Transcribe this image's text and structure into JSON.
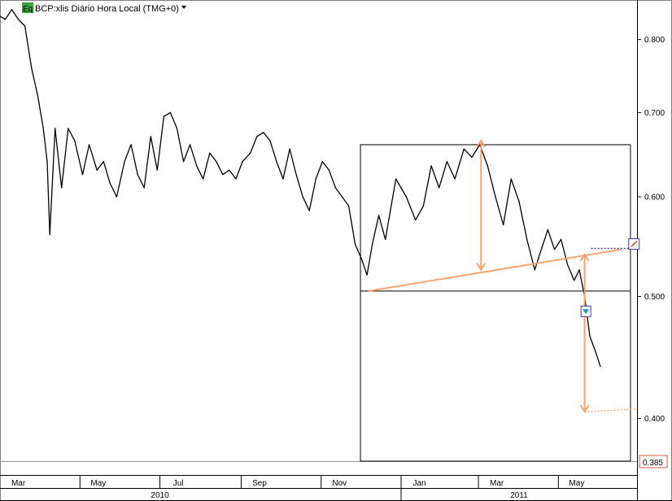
{
  "chart_data": {
    "type": "line",
    "title": "BCP:xlis Diário Hora Local (TMG+0)",
    "symbol_badge": "Eq",
    "y_scale": "log",
    "ylim": [
      0.37,
      0.86
    ],
    "y_ticks": [
      {
        "value": 0.8,
        "label": "0.800"
      },
      {
        "value": 0.7,
        "label": "0.700"
      },
      {
        "value": 0.6,
        "label": "0.600"
      },
      {
        "value": 0.5,
        "label": "0.500"
      },
      {
        "value": 0.4,
        "label": "0.400"
      }
    ],
    "x_range": [
      "2010-03-01",
      "2011-06-30"
    ],
    "x_month_labels": [
      {
        "date": "2010-03-15",
        "label": "Mar"
      },
      {
        "date": "2010-05-15",
        "label": "May"
      },
      {
        "date": "2010-07-15",
        "label": "Jul"
      },
      {
        "date": "2010-09-15",
        "label": "Sep"
      },
      {
        "date": "2010-11-15",
        "label": "Nov"
      },
      {
        "date": "2011-01-15",
        "label": "Jan"
      },
      {
        "date": "2011-03-15",
        "label": "Mar"
      },
      {
        "date": "2011-05-15",
        "label": "May"
      }
    ],
    "x_year_labels": [
      {
        "date": "2010-07-01",
        "label": "2010"
      },
      {
        "date": "2011-04-01",
        "label": "2011"
      }
    ],
    "year_boundary": "2011-01-01",
    "last_price": {
      "value": 0.385,
      "label": "0.385"
    },
    "series": [
      {
        "values": [
          [
            "2010-03-01",
            0.835
          ],
          [
            "2010-03-05",
            0.83
          ],
          [
            "2010-03-10",
            0.845
          ],
          [
            "2010-03-15",
            0.83
          ],
          [
            "2010-03-20",
            0.82
          ],
          [
            "2010-03-25",
            0.76
          ],
          [
            "2010-03-30",
            0.72
          ],
          [
            "2010-04-03",
            0.68
          ],
          [
            "2010-04-06",
            0.64
          ],
          [
            "2010-04-08",
            0.56
          ],
          [
            "2010-04-12",
            0.68
          ],
          [
            "2010-04-17",
            0.61
          ],
          [
            "2010-04-22",
            0.68
          ],
          [
            "2010-04-27",
            0.665
          ],
          [
            "2010-05-03",
            0.625
          ],
          [
            "2010-05-08",
            0.66
          ],
          [
            "2010-05-14",
            0.63
          ],
          [
            "2010-05-19",
            0.64
          ],
          [
            "2010-05-24",
            0.615
          ],
          [
            "2010-05-29",
            0.6
          ],
          [
            "2010-06-04",
            0.64
          ],
          [
            "2010-06-09",
            0.66
          ],
          [
            "2010-06-14",
            0.625
          ],
          [
            "2010-06-19",
            0.61
          ],
          [
            "2010-06-24",
            0.67
          ],
          [
            "2010-06-29",
            0.63
          ],
          [
            "2010-07-04",
            0.695
          ],
          [
            "2010-07-09",
            0.7
          ],
          [
            "2010-07-14",
            0.68
          ],
          [
            "2010-07-19",
            0.64
          ],
          [
            "2010-07-24",
            0.66
          ],
          [
            "2010-07-29",
            0.635
          ],
          [
            "2010-08-03",
            0.62
          ],
          [
            "2010-08-08",
            0.65
          ],
          [
            "2010-08-13",
            0.64
          ],
          [
            "2010-08-18",
            0.625
          ],
          [
            "2010-08-23",
            0.63
          ],
          [
            "2010-08-28",
            0.62
          ],
          [
            "2010-09-02",
            0.64
          ],
          [
            "2010-09-08",
            0.65
          ],
          [
            "2010-09-13",
            0.67
          ],
          [
            "2010-09-18",
            0.675
          ],
          [
            "2010-09-23",
            0.665
          ],
          [
            "2010-09-28",
            0.64
          ],
          [
            "2010-10-03",
            0.62
          ],
          [
            "2010-10-08",
            0.655
          ],
          [
            "2010-10-13",
            0.625
          ],
          [
            "2010-10-18",
            0.6
          ],
          [
            "2010-10-23",
            0.585
          ],
          [
            "2010-10-28",
            0.62
          ],
          [
            "2010-11-02",
            0.64
          ],
          [
            "2010-11-07",
            0.63
          ],
          [
            "2010-11-12",
            0.61
          ],
          [
            "2010-11-17",
            0.6
          ],
          [
            "2010-11-22",
            0.59
          ],
          [
            "2010-11-27",
            0.55
          ],
          [
            "2010-12-02",
            0.535
          ],
          [
            "2010-12-06",
            0.52
          ],
          [
            "2010-12-10",
            0.55
          ],
          [
            "2010-12-15",
            0.58
          ],
          [
            "2010-12-20",
            0.555
          ],
          [
            "2010-12-28",
            0.62
          ],
          [
            "2011-01-05",
            0.6
          ],
          [
            "2011-01-12",
            0.575
          ],
          [
            "2011-01-18",
            0.59
          ],
          [
            "2011-01-24",
            0.635
          ],
          [
            "2011-01-30",
            0.61
          ],
          [
            "2011-02-05",
            0.64
          ],
          [
            "2011-02-11",
            0.62
          ],
          [
            "2011-02-18",
            0.655
          ],
          [
            "2011-02-24",
            0.645
          ],
          [
            "2011-03-02",
            0.66
          ],
          [
            "2011-03-08",
            0.635
          ],
          [
            "2011-03-14",
            0.6
          ],
          [
            "2011-03-20",
            0.57
          ],
          [
            "2011-03-26",
            0.62
          ],
          [
            "2011-04-01",
            0.595
          ],
          [
            "2011-04-07",
            0.555
          ],
          [
            "2011-04-13",
            0.525
          ],
          [
            "2011-04-18",
            0.545
          ],
          [
            "2011-04-23",
            0.565
          ],
          [
            "2011-04-28",
            0.545
          ],
          [
            "2011-05-03",
            0.555
          ],
          [
            "2011-05-08",
            0.53
          ],
          [
            "2011-05-13",
            0.515
          ],
          [
            "2011-05-17",
            0.525
          ],
          [
            "2011-05-21",
            0.5
          ],
          [
            "2011-05-25",
            0.465
          ],
          [
            "2011-05-30",
            0.45
          ],
          [
            "2011-06-02",
            0.44
          ]
        ]
      }
    ],
    "annotations": [
      {
        "type": "rectangle",
        "from": [
          "2010-12-01",
          0.66
        ],
        "to": [
          "2011-06-25",
          0.37
        ]
      },
      {
        "type": "hline",
        "from": [
          "2010-12-01",
          0.505
        ],
        "to": [
          "2011-06-25",
          0.505
        ]
      },
      {
        "type": "trendline",
        "from": [
          "2010-12-07",
          0.505
        ],
        "to": [
          "2011-06-18",
          0.545
        ]
      },
      {
        "type": "arrow",
        "from": [
          "2011-03-03",
          0.665
        ],
        "to": [
          "2011-03-03",
          0.525
        ]
      },
      {
        "type": "arrow",
        "from": [
          "2011-05-21",
          0.54
        ],
        "to": [
          "2011-05-21",
          0.405
        ]
      },
      {
        "type": "dotted-line",
        "from": [
          "2011-05-21",
          0.405
        ],
        "to": [
          "2011-06-30",
          0.407
        ]
      },
      {
        "type": "dotted-line",
        "from": [
          "2011-05-26",
          0.546
        ],
        "to": [
          "2011-06-25",
          0.546
        ]
      }
    ],
    "markers": [
      {
        "name": "down-signal-icon",
        "date": "2011-05-22",
        "value": 0.487
      },
      {
        "name": "alert-marker-icon",
        "date": "2011-06-28",
        "value": 0.55
      }
    ],
    "colors": {
      "price": "#000000",
      "annotation": "#f6a36f",
      "rectangle": "#000000",
      "last_price_text": "#d23a1e",
      "last_price_border": "#e05a3a",
      "marker_border": "#3a3a9c",
      "badge_bg": "#3aa343"
    }
  }
}
